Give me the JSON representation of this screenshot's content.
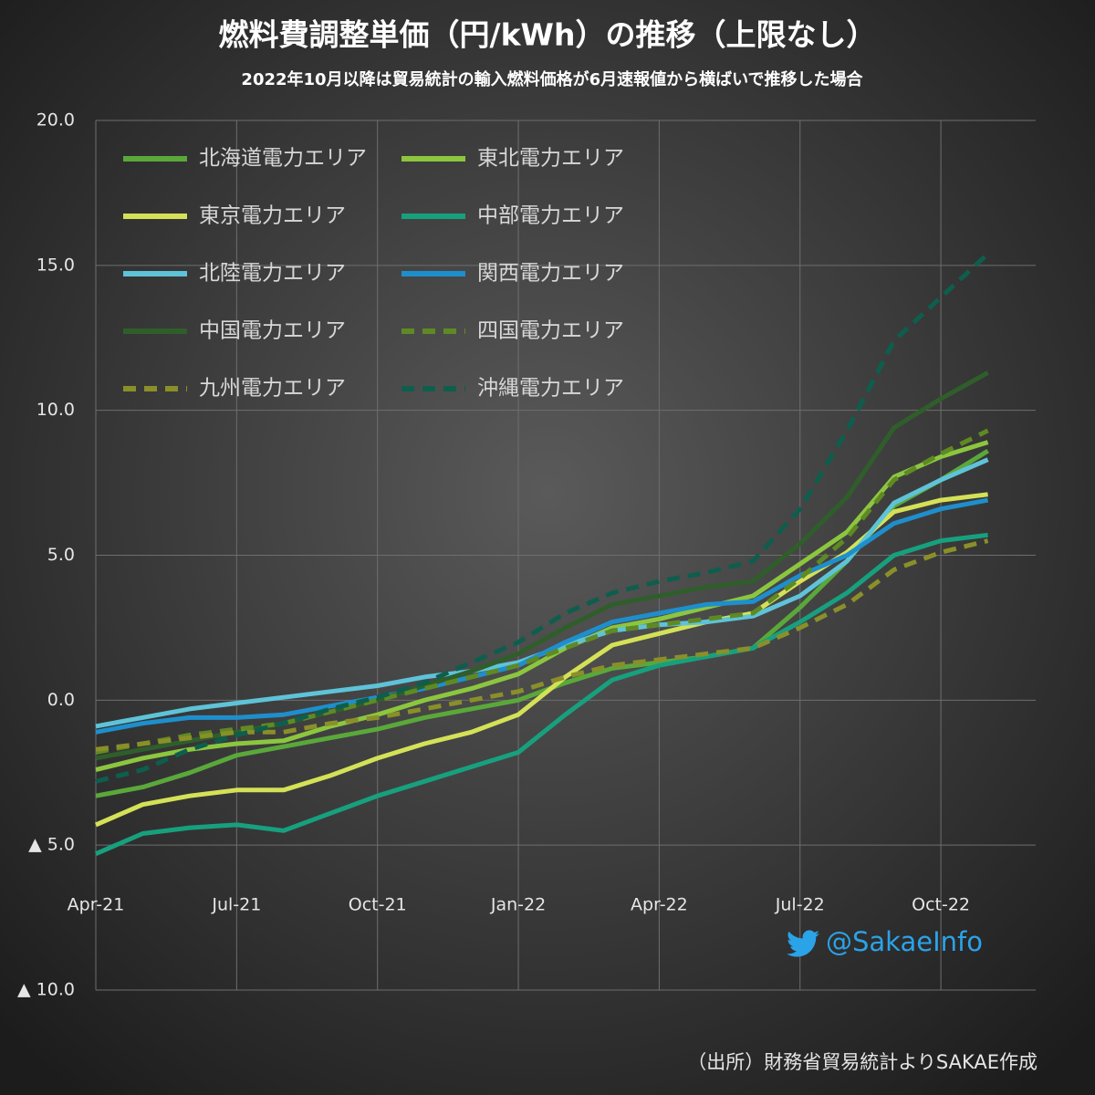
{
  "chart_data": {
    "type": "line",
    "title": "燃料費調整単価（円/kWh）の推移（上限なし）",
    "subtitle": "2022年10月以降は貿易統計の輸入燃料価格が6月速報値から横ばいで推移した場合",
    "source": "（出所）財務省貿易統計よりSAKAE作成",
    "annotation": "@SakaeInfo",
    "categories": [
      "Apr-21",
      null,
      null,
      "Jul-21",
      null,
      null,
      "Oct-21",
      null,
      null,
      "Jan-22",
      null,
      null,
      "Apr-22",
      null,
      null,
      "Jul-22",
      null,
      null,
      "Oct-22",
      null
    ],
    "ylim": [
      -10,
      20
    ],
    "yticks": [
      {
        "value": -10,
        "label": "▲ 10.0"
      },
      {
        "value": -5,
        "label": "▲ 5.0"
      },
      {
        "value": 0,
        "label": "0.0"
      },
      {
        "value": 5,
        "label": "5.0"
      },
      {
        "value": 10,
        "label": "10.0"
      },
      {
        "value": 15,
        "label": "15.0"
      },
      {
        "value": 20,
        "label": "20.0"
      }
    ],
    "grid": true,
    "legend": "top-left",
    "series": [
      {
        "name": "北海道電力エリア",
        "color": "#5aa83a",
        "dashed": false,
        "values": [
          -3.3,
          -3.0,
          -2.5,
          -1.9,
          -1.6,
          -1.3,
          -1.0,
          -0.6,
          -0.3,
          0.0,
          0.6,
          1.1,
          1.3,
          1.5,
          1.8,
          3.2,
          4.8,
          6.7,
          7.6,
          8.6
        ]
      },
      {
        "name": "東北電力エリア",
        "color": "#8cc63f",
        "dashed": false,
        "values": [
          -2.4,
          -2.0,
          -1.7,
          -1.5,
          -1.4,
          -0.9,
          -0.5,
          0.0,
          0.4,
          0.9,
          1.8,
          2.5,
          2.8,
          3.2,
          3.6,
          4.7,
          5.8,
          7.7,
          8.4,
          8.9
        ]
      },
      {
        "name": "東京電力エリア",
        "color": "#d4e157",
        "dashed": false,
        "values": [
          -4.3,
          -3.6,
          -3.3,
          -3.1,
          -3.1,
          -2.6,
          -2.0,
          -1.5,
          -1.1,
          -0.5,
          0.8,
          1.9,
          2.3,
          2.7,
          3.0,
          4.1,
          5.1,
          6.5,
          6.9,
          7.1
        ]
      },
      {
        "name": "中部電力エリア",
        "color": "#17a07e",
        "dashed": false,
        "values": [
          -5.3,
          -4.6,
          -4.4,
          -4.3,
          -4.5,
          -3.9,
          -3.3,
          -2.8,
          -2.3,
          -1.8,
          -0.5,
          0.7,
          1.2,
          1.5,
          1.8,
          2.7,
          3.7,
          5.0,
          5.5,
          5.7
        ]
      },
      {
        "name": "北陸電力エリア",
        "color": "#5ec3d8",
        "dashed": false,
        "values": [
          -0.9,
          -0.6,
          -0.3,
          -0.1,
          0.1,
          0.3,
          0.5,
          0.8,
          1.0,
          1.3,
          1.9,
          2.4,
          2.6,
          2.7,
          2.9,
          3.6,
          4.8,
          6.8,
          7.6,
          8.3
        ]
      },
      {
        "name": "関西電力エリア",
        "color": "#1e8fcc",
        "dashed": false,
        "values": [
          -1.1,
          -0.8,
          -0.6,
          -0.6,
          -0.5,
          -0.2,
          0.1,
          0.4,
          0.8,
          1.2,
          2.0,
          2.7,
          3.0,
          3.3,
          3.4,
          4.3,
          5.0,
          6.1,
          6.6,
          6.9
        ]
      },
      {
        "name": "中国電力エリア",
        "color": "#2f5e2b",
        "dashed": false,
        "values": [
          -2.0,
          -1.7,
          -1.4,
          -1.1,
          -0.8,
          -0.4,
          0.0,
          0.5,
          1.0,
          1.6,
          2.5,
          3.3,
          3.6,
          3.9,
          4.1,
          5.4,
          7.0,
          9.4,
          10.4,
          11.3
        ]
      },
      {
        "name": "四国電力エリア",
        "color": "#5f8a23",
        "dashed": true,
        "values": [
          -1.8,
          -1.5,
          -1.2,
          -1.0,
          -0.8,
          -0.4,
          0.0,
          0.4,
          0.8,
          1.2,
          1.8,
          2.4,
          2.6,
          2.8,
          3.0,
          4.2,
          5.6,
          7.6,
          8.5,
          9.3
        ]
      },
      {
        "name": "九州電力エリア",
        "color": "#8a8f2a",
        "dashed": true,
        "values": [
          -1.7,
          -1.5,
          -1.3,
          -1.1,
          -1.1,
          -0.8,
          -0.6,
          -0.3,
          0.0,
          0.3,
          0.8,
          1.2,
          1.4,
          1.6,
          1.8,
          2.5,
          3.3,
          4.5,
          5.1,
          5.5
        ]
      },
      {
        "name": "沖縄電力エリア",
        "color": "#0e5e4d",
        "dashed": true,
        "values": [
          -2.8,
          -2.4,
          -1.7,
          -1.2,
          -0.8,
          -0.3,
          0.1,
          0.6,
          1.3,
          2.0,
          3.0,
          3.7,
          4.1,
          4.4,
          4.8,
          6.6,
          9.3,
          12.4,
          13.9,
          15.4
        ]
      }
    ]
  }
}
